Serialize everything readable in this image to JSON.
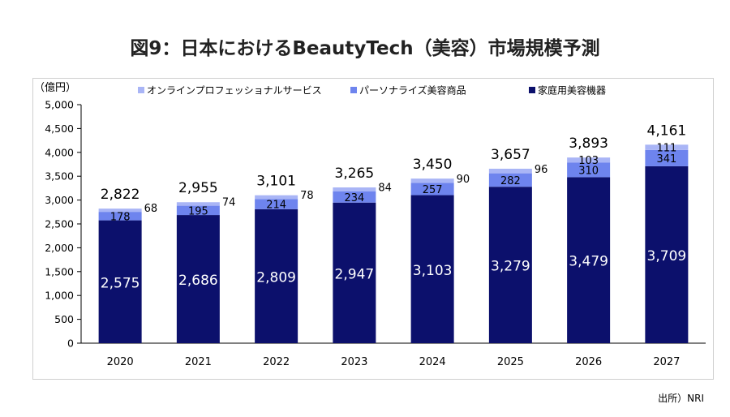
{
  "title": "図9：日本におけるBeautyTech（美容）市場規模予測",
  "source": "出所）NRI",
  "colors": {
    "online": "#a9b5f6",
    "personalize": "#6e84ee",
    "device": "#0c106c",
    "axis": "#000000"
  },
  "chart_data": {
    "type": "bar",
    "stacked": true,
    "ylabel": "（億円）",
    "ylim": [
      0,
      5000
    ],
    "yticks": [
      "0",
      "500",
      "1,000",
      "1,500",
      "2,000",
      "2,500",
      "3,000",
      "3,500",
      "4,000",
      "4,500",
      "5,000"
    ],
    "ytick_values": [
      0,
      500,
      1000,
      1500,
      2000,
      2500,
      3000,
      3500,
      4000,
      4500,
      5000
    ],
    "grid": false,
    "legend_position": "top",
    "categories": [
      "2020",
      "2021",
      "2022",
      "2023",
      "2024",
      "2025",
      "2026",
      "2027"
    ],
    "series": [
      {
        "name": "家庭用美容機器",
        "values": [
          2575,
          2686,
          2809,
          2947,
          3103,
          3279,
          3479,
          3709
        ],
        "labels": [
          "2,575",
          "2,686",
          "2,809",
          "2,947",
          "3,103",
          "3,279",
          "3,479",
          "3,709"
        ]
      },
      {
        "name": "パーソナライズ美容商品",
        "values": [
          178,
          195,
          214,
          234,
          257,
          282,
          310,
          341
        ],
        "labels": [
          "178",
          "195",
          "214",
          "234",
          "257",
          "282",
          "310",
          "341"
        ]
      },
      {
        "name": "オンラインプロフェッショナルサービス",
        "values": [
          68,
          74,
          78,
          84,
          90,
          96,
          103,
          111
        ],
        "labels": [
          "68",
          "74",
          "78",
          "84",
          "90",
          "96",
          "103",
          "111"
        ]
      }
    ],
    "totals": [
      2822,
      2955,
      3101,
      3265,
      3450,
      3657,
      3893,
      4161
    ],
    "total_labels": [
      "2,822",
      "2,955",
      "3,101",
      "3,265",
      "3,450",
      "3,657",
      "3,893",
      "4,161"
    ],
    "legend_order": [
      "オンラインプロフェッショナルサービス",
      "パーソナライズ美容商品",
      "家庭用美容機器"
    ]
  }
}
